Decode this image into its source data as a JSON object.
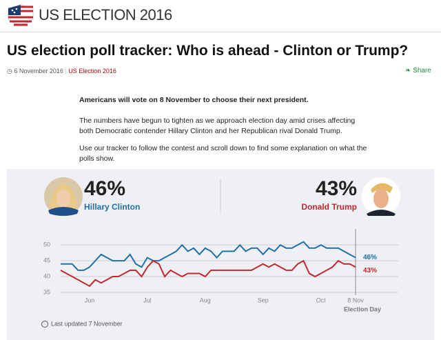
{
  "header": {
    "brand": "US ELECTION 2016"
  },
  "article": {
    "title": "US election poll tracker: Who is ahead - Clinton or Trump?",
    "date": "6 November 2016",
    "section": "US Election 2016",
    "share": "Share",
    "lead": "Americans will vote on 8 November to choose their next president.",
    "paragraphs": [
      "The numbers have begun to tighten as we approach election day amid crises affecting both Democratic contender Hillary Clinton and her Republican rival Donald Trump.",
      "Use our tracker to follow the contest and scroll down to find some explanation on what the polls show."
    ]
  },
  "tracker": {
    "clinton": {
      "percent": "46%",
      "name": "Hillary Clinton"
    },
    "trump": {
      "percent": "43%",
      "name": "Donald Trump"
    },
    "updated": "Last updated 7 November"
  },
  "chart_data": {
    "type": "line",
    "categories": [
      null,
      null,
      null,
      null,
      null,
      "Jun",
      null,
      null,
      null,
      null,
      null,
      null,
      null,
      null,
      null,
      "Jul",
      null,
      null,
      null,
      null,
      null,
      null,
      null,
      null,
      null,
      "Aug",
      null,
      null,
      null,
      null,
      null,
      null,
      null,
      null,
      null,
      "Sep",
      null,
      null,
      null,
      null,
      null,
      null,
      null,
      null,
      null,
      "Oct",
      null,
      null,
      null,
      null,
      null,
      "8 Nov"
    ],
    "annotation": "Election Day",
    "ylim": [
      35,
      52
    ],
    "yticks": [
      35,
      40,
      45,
      50
    ],
    "grid": true,
    "series": [
      {
        "name": "Hillary Clinton",
        "color": "#1f6fa8",
        "values": [
          44,
          44,
          44,
          42,
          42,
          43,
          45,
          47,
          46,
          45,
          45,
          45,
          47,
          44,
          43,
          46,
          45,
          45,
          46,
          47,
          48,
          50,
          48,
          49,
          47,
          49,
          48,
          46,
          48,
          48,
          48,
          50,
          48,
          49,
          49,
          47,
          49,
          48,
          50,
          49,
          49,
          50,
          51,
          49,
          49,
          50,
          49,
          49,
          49,
          48,
          47,
          46
        ],
        "value_labels": [
          null,
          null,
          null,
          null,
          null,
          null,
          null,
          null,
          null,
          null,
          null,
          null,
          null,
          null,
          null,
          null,
          null,
          null,
          null,
          null,
          null,
          null,
          null,
          null,
          null,
          null,
          null,
          null,
          null,
          null,
          null,
          null,
          null,
          null,
          null,
          null,
          null,
          null,
          null,
          null,
          null,
          null,
          null,
          null,
          null,
          null,
          null,
          null,
          null,
          null,
          null,
          "46%"
        ]
      },
      {
        "name": "Donald Trump",
        "color": "#c0282d",
        "values": [
          42,
          41,
          40,
          39,
          38,
          37,
          39,
          38,
          39,
          40,
          40,
          41,
          42,
          42,
          40,
          43,
          45,
          44,
          40,
          42,
          41,
          40,
          41,
          41,
          41,
          40,
          42,
          42,
          42,
          42,
          42,
          42,
          42,
          42,
          43,
          44,
          43,
          44,
          43,
          42,
          42,
          44,
          45,
          41,
          40,
          41,
          42,
          43,
          45,
          44,
          44,
          43
        ],
        "value_labels": [
          null,
          null,
          null,
          null,
          null,
          null,
          null,
          null,
          null,
          null,
          null,
          null,
          null,
          null,
          null,
          null,
          null,
          null,
          null,
          null,
          null,
          null,
          null,
          null,
          null,
          null,
          null,
          null,
          null,
          null,
          null,
          null,
          null,
          null,
          null,
          null,
          null,
          null,
          null,
          null,
          null,
          null,
          null,
          null,
          null,
          null,
          null,
          null,
          null,
          null,
          null,
          "43%"
        ]
      }
    ]
  }
}
